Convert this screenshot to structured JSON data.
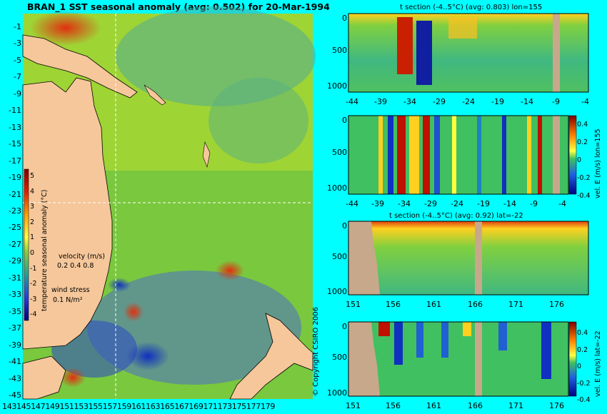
{
  "map": {
    "title": "BRAN_1 SST seasonal anomaly (avg: 0.502) for 20-Mar-1994",
    "lat_labels": [
      "-1",
      "-3",
      "-5",
      "-7",
      "-9",
      "-11",
      "-13",
      "-15",
      "-17",
      "-19",
      "-21",
      "-23",
      "-25",
      "-27",
      "-29",
      "-31",
      "-33",
      "-35",
      "-37",
      "-39",
      "-41",
      "-43",
      "-45"
    ],
    "lon_labels": [
      "143",
      "145",
      "147",
      "149",
      "151",
      "153",
      "155",
      "157",
      "159",
      "161",
      "163",
      "165",
      "167",
      "169",
      "171",
      "173",
      "175",
      "177",
      "179"
    ],
    "colorbar_ticks": [
      "5",
      "4",
      "3",
      "2",
      "1",
      "0",
      "-1",
      "-2",
      "-3",
      "-4"
    ],
    "colorbar_label": "temperature seasonal anomaly (°C)",
    "velocity_label": "velocity (m/s)",
    "velocity_scale": "0.2 0.4 0.8",
    "wind_label": "wind stress",
    "wind_scale": "0.1 N/m²",
    "copyright": "© Copyright CSIRO 2006"
  },
  "panels": {
    "p1": {
      "title": "t section (-4..5°C) (avg: 0.803) lon=155",
      "yticks": [
        "0",
        "500",
        "1000"
      ],
      "xticks": [
        "-44",
        "-39",
        "-34",
        "-29",
        "-24",
        "-19",
        "-14",
        "-9",
        "-4"
      ]
    },
    "p2": {
      "title": "",
      "yticks": [
        "0",
        "500",
        "1000"
      ],
      "xticks": [
        "-44",
        "-39",
        "-34",
        "-29",
        "-24",
        "-19",
        "-14",
        "-9",
        "-4"
      ],
      "cb_ticks": [
        "0.4",
        "0.2",
        "0",
        "-0.2",
        "-0.4"
      ],
      "cb_label": "vel. E (m/s) lon=155"
    },
    "p3": {
      "title": "t section (-4..5°C) (avg: 0.92) lat=-22",
      "yticks": [
        "0",
        "500",
        "1000"
      ],
      "xticks": [
        "151",
        "156",
        "161",
        "166",
        "171",
        "176"
      ]
    },
    "p4": {
      "title": "",
      "yticks": [
        "0",
        "500",
        "1000"
      ],
      "xticks": [
        "151",
        "156",
        "161",
        "166",
        "171",
        "176"
      ],
      "cb_ticks": [
        "0.4",
        "0.2",
        "0",
        "-0.2",
        "-0.4"
      ],
      "cb_label": "vel. E (m/s) lat=-22"
    }
  },
  "colors": {
    "background": "#00ffff",
    "land": "#f5c79a",
    "bathy": "#c8a88a"
  }
}
